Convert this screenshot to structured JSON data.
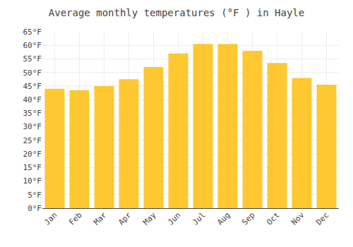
{
  "chart_data": {
    "type": "bar",
    "title": "Average monthly temperatures (°F ) in Hayle",
    "categories": [
      "Jan",
      "Feb",
      "Mar",
      "Apr",
      "May",
      "Jun",
      "Jul",
      "Aug",
      "Sep",
      "Oct",
      "Nov",
      "Dec"
    ],
    "values": [
      44,
      43.5,
      45,
      47.5,
      52,
      57,
      60.5,
      60.5,
      58,
      53.5,
      48,
      45.5
    ],
    "color": "#FFC830",
    "ylim": [
      0,
      65
    ],
    "yticks": [
      {
        "value": 0,
        "label": "0°F"
      },
      {
        "value": 5,
        "label": "5°F"
      },
      {
        "value": 10,
        "label": "10°F"
      },
      {
        "value": 15,
        "label": "15°F"
      },
      {
        "value": 20,
        "label": "20°F"
      },
      {
        "value": 25,
        "label": "25°F"
      },
      {
        "value": 30,
        "label": "30°F"
      },
      {
        "value": 35,
        "label": "35°F"
      },
      {
        "value": 40,
        "label": "40°F"
      },
      {
        "value": 45,
        "label": "45°F"
      },
      {
        "value": 50,
        "label": "50°F"
      },
      {
        "value": 55,
        "label": "55°F"
      },
      {
        "value": 60,
        "label": "60°F"
      },
      {
        "value": 65,
        "label": "65°F"
      }
    ],
    "grid": true
  }
}
